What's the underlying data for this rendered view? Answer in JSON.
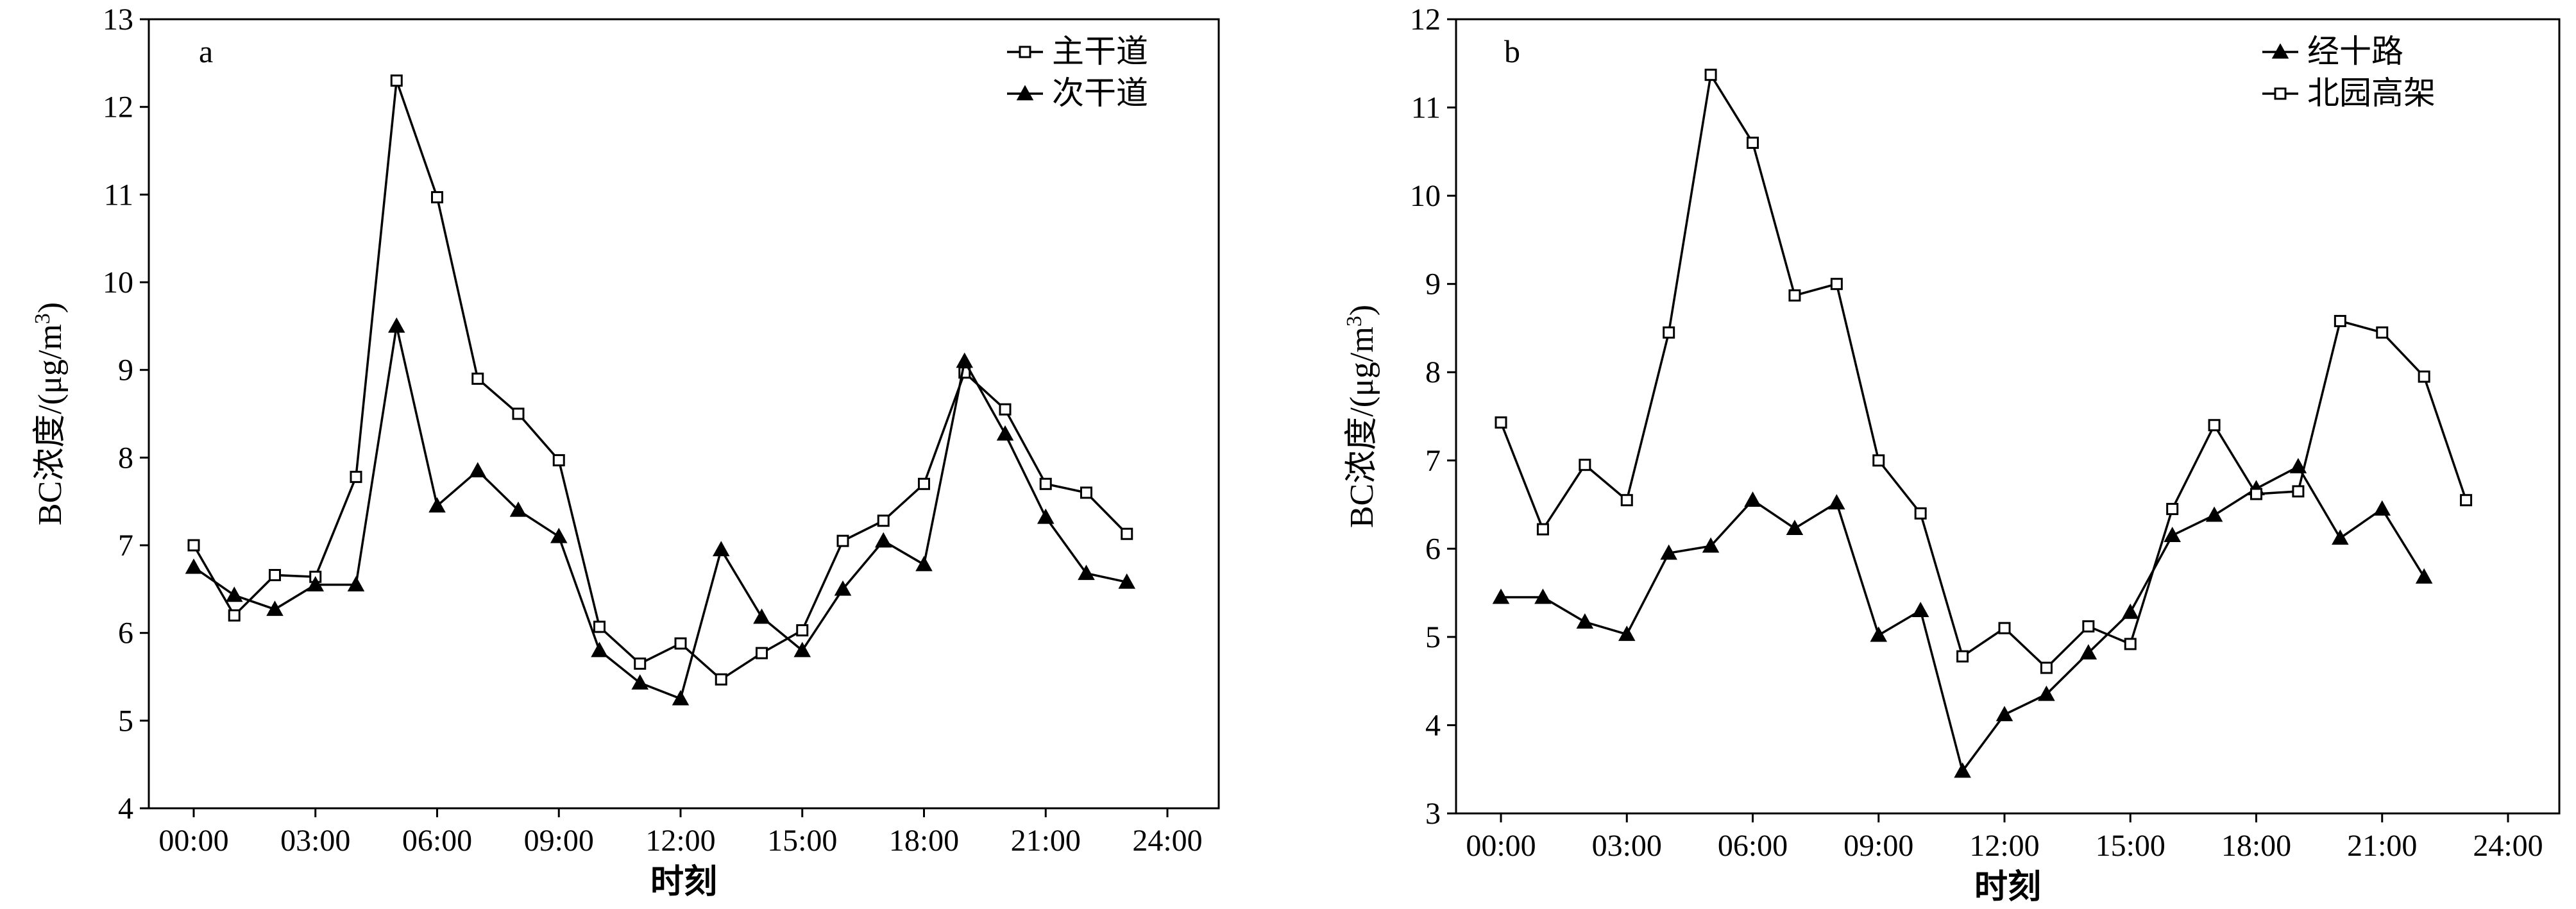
{
  "chart_data": [
    {
      "type": "line",
      "panel_label": "a",
      "xlabel": "时刻",
      "ylabel": "BC浓度/(μg/m³)",
      "ylabel_parts": {
        "prefix": "BC浓度/(μg/m",
        "sup": "3",
        "suffix": ")"
      },
      "xlim": [
        0,
        24
      ],
      "ylim": [
        4,
        13
      ],
      "x_ticks": [
        0,
        3,
        6,
        9,
        12,
        15,
        18,
        21,
        24
      ],
      "x_tick_labels": [
        "00:00",
        "03:00",
        "06:00",
        "09:00",
        "12:00",
        "15:00",
        "18:00",
        "21:00",
        "24:00"
      ],
      "y_ticks": [
        4,
        5,
        6,
        7,
        8,
        9,
        10,
        11,
        12,
        13
      ],
      "y_tick_labels": [
        "4",
        "5",
        "6",
        "7",
        "8",
        "9",
        "10",
        "11",
        "12",
        "13"
      ],
      "legend_position": "top-right",
      "series": [
        {
          "name": "主干道",
          "marker": "square-open",
          "x": [
            0,
            1,
            2,
            3,
            4,
            5,
            6,
            7,
            8,
            9,
            10,
            11,
            12,
            13,
            14,
            15,
            16,
            17,
            18,
            19,
            20,
            21,
            22,
            23
          ],
          "values": [
            7.0,
            6.2,
            6.66,
            6.64,
            7.78,
            12.3,
            10.97,
            8.9,
            8.5,
            7.97,
            6.07,
            5.65,
            5.88,
            5.47,
            5.77,
            6.03,
            7.05,
            7.28,
            7.7,
            8.97,
            8.55,
            7.7,
            7.6,
            7.13
          ]
        },
        {
          "name": "次干道",
          "marker": "triangle-filled",
          "x": [
            0,
            1,
            2,
            3,
            4,
            5,
            6,
            7,
            8,
            9,
            10,
            11,
            12,
            13,
            14,
            15,
            16,
            17,
            18,
            19,
            20,
            21,
            22,
            23
          ],
          "values": [
            6.75,
            6.43,
            6.27,
            6.55,
            6.55,
            9.5,
            7.45,
            7.85,
            7.4,
            7.1,
            5.8,
            5.43,
            5.25,
            6.95,
            6.18,
            5.8,
            6.5,
            7.05,
            6.78,
            9.1,
            8.27,
            7.32,
            6.68,
            6.58
          ]
        }
      ]
    },
    {
      "type": "line",
      "panel_label": "b",
      "xlabel": "时刻",
      "ylabel": "BC浓度/(μg/m³)",
      "ylabel_parts": {
        "prefix": "BC浓度/(μg/m",
        "sup": "3",
        "suffix": ")"
      },
      "xlim": [
        0,
        24
      ],
      "ylim": [
        3,
        12
      ],
      "x_ticks": [
        0,
        3,
        6,
        9,
        12,
        15,
        18,
        21,
        24
      ],
      "x_tick_labels": [
        "00:00",
        "03:00",
        "06:00",
        "09:00",
        "12:00",
        "15:00",
        "18:00",
        "21:00",
        "24:00"
      ],
      "y_ticks": [
        3,
        4,
        5,
        6,
        7,
        8,
        9,
        10,
        11,
        12
      ],
      "y_tick_labels": [
        "3",
        "4",
        "5",
        "6",
        "7",
        "8",
        "9",
        "10",
        "11",
        "12"
      ],
      "legend_position": "top-right",
      "series": [
        {
          "name": "经十路",
          "marker": "triangle-filled",
          "x": [
            0,
            1,
            2,
            3,
            4,
            5,
            6,
            7,
            8,
            9,
            10,
            11,
            12,
            13,
            14,
            15,
            16,
            17,
            18,
            19,
            20,
            21,
            22
          ],
          "values": [
            5.45,
            5.45,
            5.17,
            5.03,
            5.95,
            6.03,
            6.55,
            6.23,
            6.52,
            5.02,
            5.3,
            3.48,
            4.12,
            4.35,
            4.82,
            5.28,
            6.15,
            6.38,
            6.68,
            6.93,
            6.12,
            6.45,
            5.68
          ]
        },
        {
          "name": "北园高架",
          "marker": "square-open",
          "x": [
            0,
            1,
            2,
            3,
            4,
            5,
            6,
            7,
            8,
            9,
            10,
            11,
            12,
            13,
            14,
            15,
            16,
            17,
            18,
            19,
            20,
            21,
            22,
            23
          ],
          "values": [
            7.43,
            6.22,
            6.95,
            6.55,
            8.45,
            11.37,
            10.6,
            8.87,
            9.0,
            7.0,
            6.4,
            4.78,
            5.1,
            4.65,
            5.12,
            4.92,
            6.45,
            7.4,
            6.62,
            6.65,
            8.58,
            8.45,
            7.95,
            6.55
          ]
        }
      ]
    }
  ]
}
